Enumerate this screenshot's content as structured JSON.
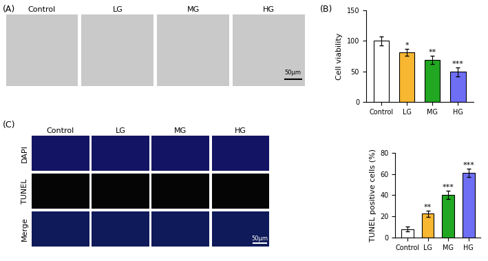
{
  "panel_labels": [
    "(A)",
    "(B)",
    "(C)"
  ],
  "image_panels": {
    "A": {
      "columns": [
        "Control",
        "LG",
        "MG",
        "HG"
      ],
      "scale_bar": "50μm"
    },
    "C": {
      "columns": [
        "Control",
        "LG",
        "MG",
        "HG"
      ],
      "rows": [
        "DAPI",
        "TUNEL",
        "Merge"
      ],
      "scale_bar": "50μm"
    }
  },
  "chart_data": [
    {
      "type": "bar",
      "y_label": "Cell viability",
      "categories": [
        "Control",
        "LG",
        "MG",
        "HG"
      ],
      "values": [
        100,
        81,
        69,
        49
      ],
      "errors": [
        7,
        6,
        7,
        7
      ],
      "colors": [
        "#ffffff",
        "#f7b731",
        "#22a722",
        "#6e6ef5"
      ],
      "annotations": [
        null,
        "*",
        "**",
        "***"
      ],
      "ylim": [
        0,
        150
      ],
      "yticks": [
        0,
        50,
        100,
        150
      ]
    },
    {
      "type": "bar",
      "y_label": "TUNEL positive cells (%)",
      "categories": [
        "Control",
        "LG",
        "MG",
        "HG"
      ],
      "values": [
        8,
        22.5,
        40,
        61
      ],
      "errors": [
        2,
        3,
        4,
        4
      ],
      "colors": [
        "#ffffff",
        "#f7b731",
        "#22a722",
        "#6e6ef5"
      ],
      "annotations": [
        null,
        "**",
        "***",
        "***"
      ],
      "ylim": [
        0,
        80
      ],
      "yticks": [
        0,
        20,
        40,
        60,
        80
      ]
    }
  ]
}
